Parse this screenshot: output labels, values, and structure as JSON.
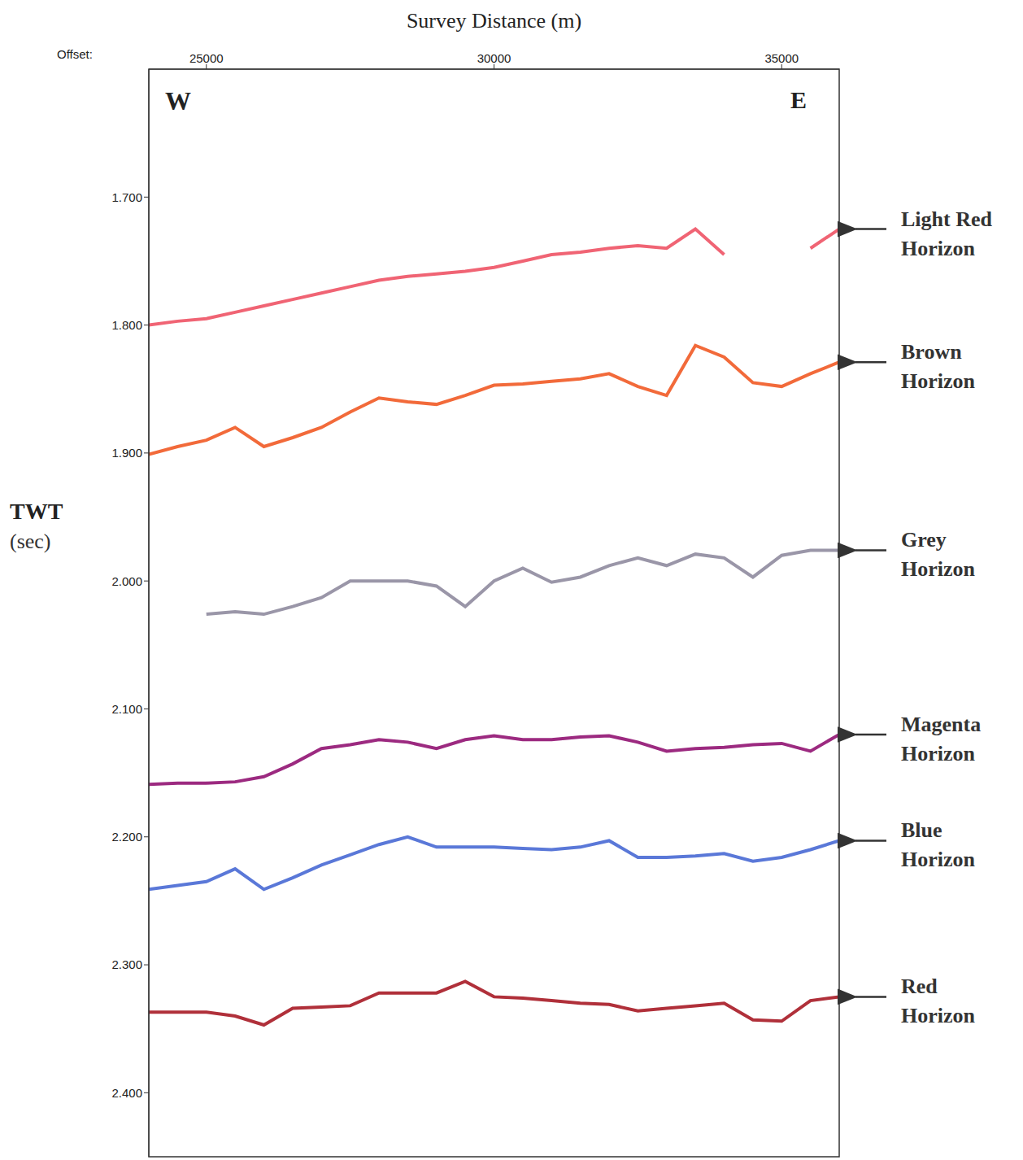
{
  "chart_data": {
    "type": "line",
    "xlabel": "Survey Distance (m)",
    "x_axis_note": "Offset:",
    "ylabel": "TWT (sec)",
    "annotations": [
      "W",
      "E"
    ],
    "legend": "right",
    "x": [
      24000,
      24500,
      25000,
      25500,
      26000,
      26500,
      27000,
      27500,
      28000,
      28500,
      29000,
      29500,
      30000,
      30500,
      31000,
      31500,
      32000,
      32500,
      33000,
      33500,
      34000,
      34500,
      35000,
      35500,
      36000
    ],
    "xlim": [
      24000,
      36000
    ],
    "xticks": [
      25000,
      30000,
      35000
    ],
    "ylim": [
      1.6,
      2.45
    ],
    "yticks": [
      {
        "value": 1.7,
        "label": "1.700"
      },
      {
        "value": 1.8,
        "label": "1.800"
      },
      {
        "value": 1.9,
        "label": "1.900"
      },
      {
        "value": 2.0,
        "label": "2.000"
      },
      {
        "value": 2.1,
        "label": "2.100"
      },
      {
        "value": 2.2,
        "label": "2.200"
      },
      {
        "value": 2.3,
        "label": "2.300"
      },
      {
        "value": 2.4,
        "label": "2.400"
      }
    ],
    "series": [
      {
        "name": "Light Red Horizon",
        "color": "#f06474",
        "values": [
          1.8,
          1.797,
          1.795,
          1.79,
          1.785,
          1.78,
          1.775,
          1.77,
          1.765,
          1.762,
          1.76,
          1.758,
          1.755,
          1.75,
          1.745,
          1.743,
          1.74,
          1.738,
          1.74,
          1.725,
          1.745,
          null,
          null,
          1.74,
          1.725
        ]
      },
      {
        "name": "Brown Horizon",
        "color": "#f26a3a",
        "values": [
          1.901,
          1.895,
          1.89,
          1.88,
          1.895,
          1.888,
          1.88,
          1.868,
          1.857,
          1.86,
          1.862,
          1.855,
          1.847,
          1.846,
          1.844,
          1.842,
          1.838,
          1.848,
          1.855,
          1.816,
          1.825,
          1.845,
          1.848,
          1.838,
          1.829
        ]
      },
      {
        "name": "Grey Horizon",
        "color": "#9a96a8",
        "values": [
          null,
          null,
          2.026,
          2.024,
          2.026,
          2.02,
          2.013,
          2.0,
          2.0,
          2.0,
          2.004,
          2.02,
          2.0,
          1.99,
          2.001,
          1.997,
          1.988,
          1.982,
          1.988,
          1.979,
          1.982,
          1.997,
          1.98,
          1.976,
          1.976
        ]
      },
      {
        "name": "Magenta Horizon",
        "color": "#9c2a80",
        "values": [
          2.159,
          2.158,
          2.158,
          2.157,
          2.153,
          2.143,
          2.131,
          2.128,
          2.124,
          2.126,
          2.131,
          2.124,
          2.121,
          2.124,
          2.124,
          2.122,
          2.121,
          2.126,
          2.133,
          2.131,
          2.13,
          2.128,
          2.127,
          2.133,
          2.12
        ]
      },
      {
        "name": "Blue Horizon",
        "color": "#5a78d8",
        "values": [
          2.241,
          2.238,
          2.235,
          2.225,
          2.241,
          2.232,
          2.222,
          2.214,
          2.206,
          2.2,
          2.208,
          2.208,
          2.208,
          2.209,
          2.21,
          2.208,
          2.203,
          2.216,
          2.216,
          2.215,
          2.213,
          2.219,
          2.216,
          2.21,
          2.203
        ]
      },
      {
        "name": "Red Horizon",
        "color": "#b0303a",
        "values": [
          2.337,
          2.337,
          2.337,
          2.34,
          2.347,
          2.334,
          2.333,
          2.332,
          2.322,
          2.322,
          2.322,
          2.313,
          2.325,
          2.326,
          2.328,
          2.33,
          2.331,
          2.336,
          2.334,
          2.332,
          2.33,
          2.343,
          2.344,
          2.328,
          2.325
        ]
      }
    ]
  }
}
